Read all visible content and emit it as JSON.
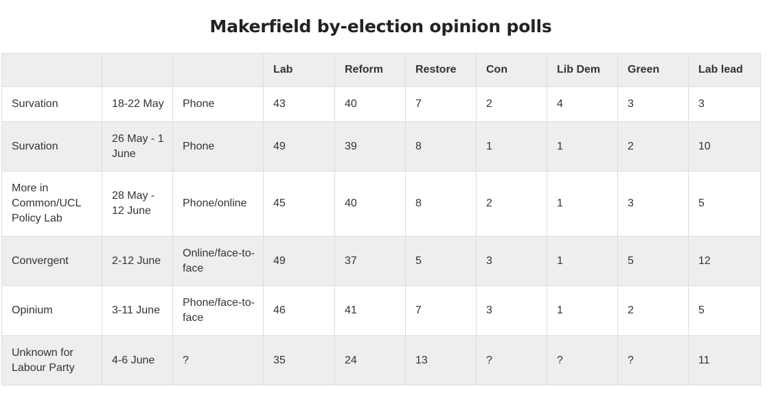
{
  "title": "Makerfield by-election opinion polls",
  "table": {
    "headers": [
      "",
      "",
      "",
      "Lab",
      "Reform",
      "Restore",
      "Con",
      "Lib Dem",
      "Green",
      "Lab lead"
    ],
    "rows": [
      [
        "Survation",
        "18-22 May",
        "Phone",
        "43",
        "40",
        "7",
        "2",
        "4",
        "3",
        "3"
      ],
      [
        "Survation",
        "26 May - 1 June",
        "Phone",
        "49",
        "39",
        "8",
        "1",
        "1",
        "2",
        "10"
      ],
      [
        "More in Common/UCL Policy Lab",
        "28 May - 12 June",
        "Phone/online",
        "45",
        "40",
        "8",
        "2",
        "1",
        "3",
        "5"
      ],
      [
        "Convergent",
        "2-12 June",
        "Online/face-to-face",
        "49",
        "37",
        "5",
        "3",
        "1",
        "5",
        "12"
      ],
      [
        "Opinium",
        "3-11 June",
        "Phone/face-to-face",
        "46",
        "41",
        "7",
        "3",
        "1",
        "2",
        "5"
      ],
      [
        "Unknown for Labour Party",
        "4-6 June",
        "?",
        "35",
        "24",
        "13",
        "?",
        "?",
        "?",
        "11"
      ]
    ]
  },
  "colors": {
    "header_bg": "#eeeeee",
    "stripe_bg": "#eeeeee",
    "border": "#dddddd",
    "text": "#333333"
  }
}
